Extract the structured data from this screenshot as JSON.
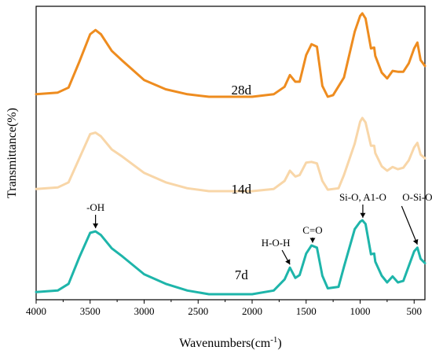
{
  "chart_data": {
    "type": "line",
    "title": "",
    "xlabel": "Wavenumbers(cm",
    "xlabel_sup": "-1",
    "xlabel_close": ")",
    "ylabel": "Transmittance(%)",
    "xlim": [
      4000,
      400
    ],
    "x_reversed": true,
    "y_ticks_shown": false,
    "grid": false,
    "x_ticks": [
      4000,
      3500,
      3000,
      2500,
      2000,
      1500,
      1000,
      500
    ],
    "series": [
      {
        "name": "28d",
        "color": "#EE8C1F",
        "points": [
          [
            4000,
            0.03
          ],
          [
            3800,
            0.05
          ],
          [
            3700,
            0.11
          ],
          [
            3600,
            0.42
          ],
          [
            3500,
            0.75
          ],
          [
            3450,
            0.8
          ],
          [
            3400,
            0.75
          ],
          [
            3300,
            0.55
          ],
          [
            3200,
            0.43
          ],
          [
            3000,
            0.2
          ],
          [
            2800,
            0.09
          ],
          [
            2600,
            0.03
          ],
          [
            2400,
            0.0
          ],
          [
            2000,
            0.0
          ],
          [
            1800,
            0.03
          ],
          [
            1700,
            0.12
          ],
          [
            1650,
            0.26
          ],
          [
            1600,
            0.18
          ],
          [
            1560,
            0.18
          ],
          [
            1500,
            0.5
          ],
          [
            1450,
            0.63
          ],
          [
            1400,
            0.6
          ],
          [
            1350,
            0.13
          ],
          [
            1300,
            0.0
          ],
          [
            1250,
            0.02
          ],
          [
            1150,
            0.23
          ],
          [
            1050,
            0.78
          ],
          [
            1000,
            0.97
          ],
          [
            980,
            1.0
          ],
          [
            950,
            0.94
          ],
          [
            900,
            0.58
          ],
          [
            870,
            0.59
          ],
          [
            860,
            0.49
          ],
          [
            800,
            0.29
          ],
          [
            750,
            0.22
          ],
          [
            700,
            0.31
          ],
          [
            650,
            0.3
          ],
          [
            600,
            0.3
          ],
          [
            550,
            0.4
          ],
          [
            500,
            0.58
          ],
          [
            470,
            0.65
          ],
          [
            440,
            0.44
          ],
          [
            400,
            0.37
          ]
        ]
      },
      {
        "name": "14d",
        "color": "#F8D6A8",
        "points": [
          [
            4000,
            0.03
          ],
          [
            3800,
            0.05
          ],
          [
            3700,
            0.12
          ],
          [
            3600,
            0.45
          ],
          [
            3500,
            0.78
          ],
          [
            3450,
            0.8
          ],
          [
            3400,
            0.75
          ],
          [
            3300,
            0.57
          ],
          [
            3200,
            0.47
          ],
          [
            3000,
            0.25
          ],
          [
            2800,
            0.12
          ],
          [
            2600,
            0.04
          ],
          [
            2400,
            0.0
          ],
          [
            2000,
            0.0
          ],
          [
            1800,
            0.03
          ],
          [
            1700,
            0.14
          ],
          [
            1650,
            0.28
          ],
          [
            1600,
            0.2
          ],
          [
            1560,
            0.22
          ],
          [
            1500,
            0.39
          ],
          [
            1450,
            0.4
          ],
          [
            1400,
            0.38
          ],
          [
            1350,
            0.14
          ],
          [
            1300,
            0.02
          ],
          [
            1200,
            0.04
          ],
          [
            1150,
            0.22
          ],
          [
            1050,
            0.65
          ],
          [
            1000,
            0.95
          ],
          [
            980,
            1.0
          ],
          [
            950,
            0.94
          ],
          [
            900,
            0.62
          ],
          [
            870,
            0.62
          ],
          [
            860,
            0.52
          ],
          [
            800,
            0.34
          ],
          [
            750,
            0.28
          ],
          [
            700,
            0.33
          ],
          [
            650,
            0.3
          ],
          [
            600,
            0.32
          ],
          [
            550,
            0.42
          ],
          [
            500,
            0.6
          ],
          [
            470,
            0.66
          ],
          [
            440,
            0.5
          ],
          [
            400,
            0.45
          ]
        ]
      },
      {
        "name": "7d",
        "color": "#1EB5AA",
        "points": [
          [
            4000,
            0.03
          ],
          [
            3800,
            0.05
          ],
          [
            3700,
            0.14
          ],
          [
            3600,
            0.5
          ],
          [
            3500,
            0.83
          ],
          [
            3450,
            0.85
          ],
          [
            3400,
            0.8
          ],
          [
            3300,
            0.62
          ],
          [
            3200,
            0.51
          ],
          [
            3000,
            0.27
          ],
          [
            2800,
            0.14
          ],
          [
            2600,
            0.05
          ],
          [
            2400,
            0.0
          ],
          [
            2000,
            0.0
          ],
          [
            1800,
            0.05
          ],
          [
            1700,
            0.2
          ],
          [
            1650,
            0.36
          ],
          [
            1600,
            0.22
          ],
          [
            1560,
            0.26
          ],
          [
            1500,
            0.55
          ],
          [
            1450,
            0.66
          ],
          [
            1400,
            0.63
          ],
          [
            1350,
            0.25
          ],
          [
            1300,
            0.08
          ],
          [
            1200,
            0.1
          ],
          [
            1150,
            0.37
          ],
          [
            1050,
            0.88
          ],
          [
            1000,
            0.98
          ],
          [
            980,
            1.0
          ],
          [
            950,
            0.95
          ],
          [
            900,
            0.54
          ],
          [
            870,
            0.55
          ],
          [
            860,
            0.44
          ],
          [
            800,
            0.25
          ],
          [
            750,
            0.16
          ],
          [
            700,
            0.24
          ],
          [
            650,
            0.16
          ],
          [
            600,
            0.18
          ],
          [
            550,
            0.38
          ],
          [
            500,
            0.58
          ],
          [
            470,
            0.63
          ],
          [
            440,
            0.48
          ],
          [
            400,
            0.42
          ]
        ]
      }
    ],
    "series_labels": [
      {
        "text": "28d",
        "x": 2100
      },
      {
        "text": "14d",
        "x": 2100
      },
      {
        "text": "7d",
        "x": 2100
      }
    ],
    "annotations": [
      {
        "text": "-OH",
        "x": 3450
      },
      {
        "text": "H-O-H",
        "x": 1650
      },
      {
        "text": "C=O",
        "x": 1440
      },
      {
        "text": "Si-O, A1-O",
        "x": 975
      },
      {
        "text": "O-Si-O",
        "x": 470
      }
    ]
  }
}
